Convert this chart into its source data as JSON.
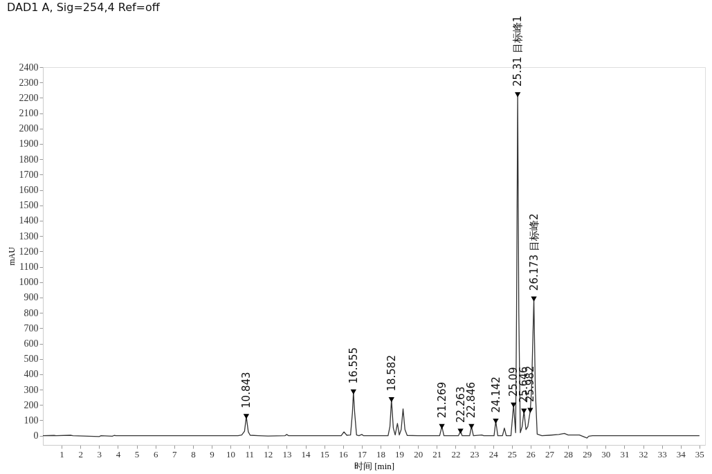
{
  "chart_data": {
    "type": "line",
    "title": "DAD1 A, Sig=254,4 Ref=off",
    "xlabel": "时间 [min]",
    "ylabel": "mAU",
    "xlim": [
      0,
      35.3
    ],
    "ylim": [
      -60,
      2400
    ],
    "xticks": [
      1,
      2,
      3,
      4,
      5,
      6,
      7,
      8,
      9,
      10,
      11,
      12,
      13,
      14,
      15,
      16,
      17,
      18,
      19,
      20,
      21,
      22,
      23,
      24,
      25,
      26,
      27,
      28,
      29,
      30,
      31,
      32,
      33,
      34,
      35
    ],
    "yticks": [
      0,
      100,
      200,
      300,
      400,
      500,
      600,
      700,
      800,
      900,
      1000,
      1100,
      1200,
      1300,
      1400,
      1500,
      1600,
      1700,
      1800,
      1900,
      2000,
      2100,
      2200,
      2300,
      2400
    ],
    "grid": false,
    "series": [
      {
        "color": "#333333",
        "line_style": "solid",
        "marker": "none",
        "x": [
          0,
          0.6,
          0.7,
          1.5,
          1.6,
          3.0,
          3.1,
          3.7,
          3.8,
          3.9,
          10.4,
          10.6,
          10.75,
          10.843,
          10.95,
          11.05,
          11.5,
          12.0,
          12.9,
          13.0,
          13.1,
          15.9,
          16.05,
          16.2,
          16.4,
          16.5,
          16.555,
          16.62,
          16.72,
          16.85,
          17.0,
          17.1,
          18.4,
          18.5,
          18.582,
          18.68,
          18.78,
          18.9,
          19.0,
          19.1,
          19.2,
          19.3,
          19.42,
          20.0,
          21.15,
          21.269,
          21.38,
          22.15,
          22.263,
          22.35,
          22.75,
          22.846,
          22.95,
          23.4,
          23.5,
          24.05,
          24.142,
          24.25,
          24.5,
          24.6,
          24.7,
          24.95,
          25.09,
          25.2,
          25.25,
          25.31,
          25.37,
          25.45,
          25.55,
          25.646,
          25.75,
          25.85,
          25.982,
          26.05,
          26.173,
          26.25,
          26.35,
          26.6,
          27.0,
          27.5,
          27.8,
          28.0,
          28.6,
          28.9,
          29.0,
          29.1,
          29.3,
          35
        ],
        "values": [
          0,
          2,
          0,
          3,
          0,
          -5,
          0,
          -3,
          2,
          0,
          0,
          5,
          30,
          125,
          25,
          3,
          0,
          -2,
          0,
          8,
          0,
          0,
          25,
          3,
          5,
          150,
          285,
          150,
          5,
          0,
          8,
          0,
          0,
          60,
          235,
          50,
          5,
          80,
          5,
          40,
          175,
          40,
          2,
          0,
          0,
          60,
          0,
          0,
          30,
          0,
          0,
          60,
          0,
          5,
          0,
          0,
          95,
          0,
          0,
          50,
          0,
          0,
          200,
          20,
          800,
          2220,
          800,
          20,
          60,
          160,
          40,
          60,
          165,
          300,
          890,
          300,
          10,
          0,
          3,
          8,
          15,
          5,
          5,
          -10,
          -15,
          -3,
          0,
          0
        ]
      },
      {
        "type": "scatter",
        "color": "#000000",
        "marker": "triangle",
        "x": [
          10.843,
          16.555,
          18.582,
          21.269,
          22.263,
          22.846,
          24.142,
          25.09,
          25.31,
          25.646,
          25.982,
          26.173
        ],
        "values": [
          125,
          285,
          235,
          60,
          30,
          60,
          95,
          200,
          2220,
          160,
          165,
          890
        ]
      }
    ],
    "annotations": [
      {
        "text": "10.843",
        "x": 10.843,
        "y": 125
      },
      {
        "text": "16.555",
        "x": 16.555,
        "y": 285
      },
      {
        "text": "18.582",
        "x": 18.582,
        "y": 235
      },
      {
        "text": "21.269",
        "x": 21.269,
        "y": 60
      },
      {
        "text": "22.263",
        "x": 22.263,
        "y": 30
      },
      {
        "text": "22.846",
        "x": 22.846,
        "y": 60
      },
      {
        "text": "24.142",
        "x": 24.142,
        "y": 95
      },
      {
        "text": "25.09",
        "x": 25.09,
        "y": 200
      },
      {
        "text": "25.31 目标峰1",
        "x": 25.31,
        "y": 2220
      },
      {
        "text": "25.646",
        "x": 25.646,
        "y": 160
      },
      {
        "text": "25.982",
        "x": 25.982,
        "y": 165
      },
      {
        "text": "26.173 目标峰2",
        "x": 26.173,
        "y": 890
      }
    ]
  }
}
